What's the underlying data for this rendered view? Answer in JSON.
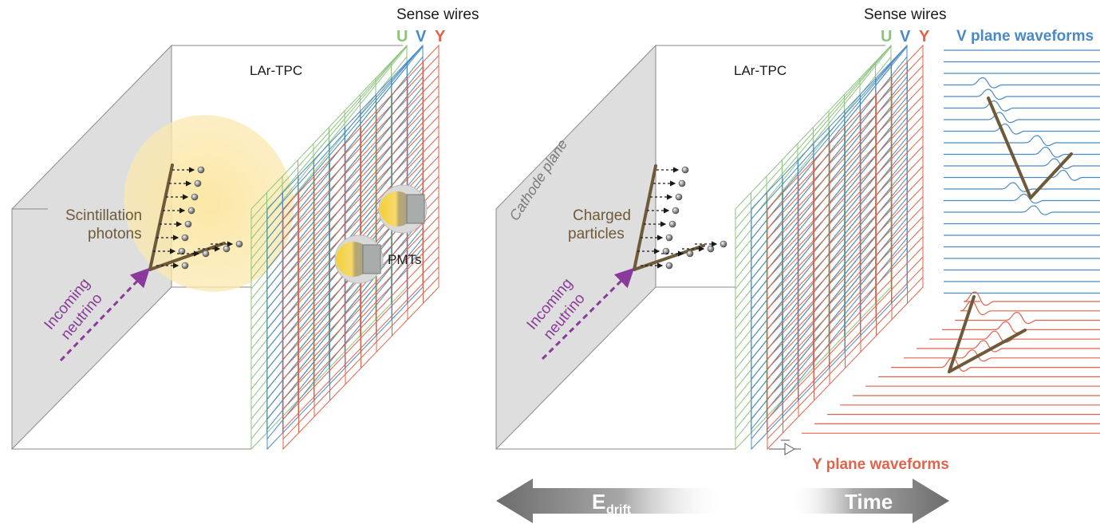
{
  "colors": {
    "u_wire": "#8cc47e",
    "v_wire": "#4a8ac4",
    "y_wire": "#e0634a",
    "track": "#6e5a3a",
    "neutrino": "#8a3a9a",
    "scint_glow": "#fbe9a8",
    "cathode": "#d8d8d8",
    "box_line": "#8a8a8a"
  },
  "left_panel": {
    "sense_wires_label": "Sense wires",
    "plane_u": "U",
    "plane_v": "V",
    "plane_y": "Y",
    "tpc_label": "LAr-TPC",
    "scint_label_line1": "Scintillation",
    "scint_label_line2": "photons",
    "neutrino_line1": "Incoming",
    "neutrino_line2": "neutrino",
    "pmt_label": "PMTs"
  },
  "right_panel": {
    "sense_wires_label": "Sense wires",
    "plane_u": "U",
    "plane_v": "V",
    "plane_y": "Y",
    "tpc_label": "LAr-TPC",
    "cathode_label": "Cathode plane",
    "charged_line1": "Charged",
    "charged_line2": "particles",
    "neutrino_line1": "Incoming",
    "neutrino_line2": "neutrino",
    "v_waveforms_label": "V plane waveforms",
    "y_waveforms_label": "Y plane waveforms"
  },
  "arrows": {
    "drift_label": "E",
    "drift_subscript": "drift",
    "time_label": "Time"
  }
}
